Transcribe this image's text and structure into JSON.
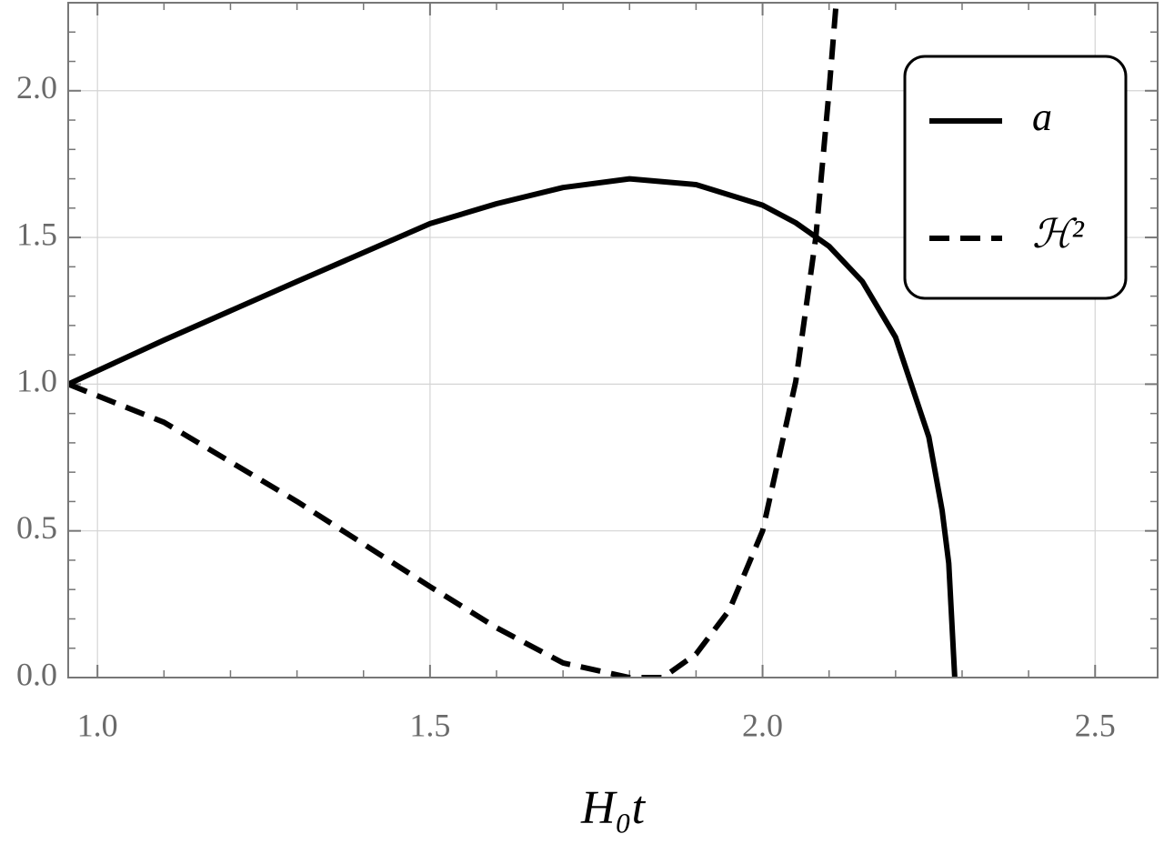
{
  "chart_data": {
    "type": "line",
    "x_label": "H₀t",
    "xlim": [
      0.956,
      2.594
    ],
    "ylim": [
      0,
      2.3
    ],
    "xticks": [
      {
        "value": 1,
        "label": "1.0"
      },
      1.5,
      {
        "value": 2,
        "label": "2.0"
      },
      2.5
    ],
    "yticks": [
      {
        "value": 0,
        "label": "0.0"
      },
      0.5,
      {
        "value": 1,
        "label": "1.0"
      },
      1.5,
      {
        "value": 2,
        "label": "2.0"
      }
    ],
    "xminorticks": [
      1.1,
      1.2,
      1.3,
      1.4,
      1.6,
      1.7,
      1.8,
      1.9,
      2.1,
      2.2,
      2.3,
      2.4
    ],
    "yminorticks": [
      0.1,
      0.2,
      0.3,
      0.4,
      0.6,
      0.7,
      0.8,
      0.9,
      1.1,
      1.2,
      1.3,
      1.4,
      1.6,
      1.7,
      1.8,
      1.9,
      2.1,
      2.2
    ],
    "grid": true,
    "legend": "upper right",
    "series": [
      {
        "name": "a",
        "color": "#000000",
        "dash": false,
        "x": [
          0.956,
          1.1,
          1.3,
          1.5,
          1.6,
          1.7,
          1.8,
          1.9,
          2.0,
          2.05,
          2.1,
          2.15,
          2.2,
          2.25,
          2.27,
          2.28,
          2.289
        ],
        "values": [
          1.0,
          1.15,
          1.35,
          1.547,
          1.615,
          1.67,
          1.7,
          1.68,
          1.61,
          1.55,
          1.47,
          1.35,
          1.16,
          0.82,
          0.57,
          0.39,
          0
        ]
      },
      {
        "name": "ℋ²",
        "color": "#000000",
        "dash": true,
        "x": [
          0.956,
          1.1,
          1.3,
          1.5,
          1.6,
          1.7,
          1.8,
          1.85,
          1.9,
          1.95,
          2.0,
          2.05,
          2.08,
          2.1,
          2.11
        ],
        "values": [
          1.0,
          0.87,
          0.6,
          0.31,
          0.17,
          0.05,
          0.0,
          0.0,
          0.08,
          0.23,
          0.5,
          1.01,
          1.5,
          2.0,
          2.28
        ]
      }
    ]
  }
}
